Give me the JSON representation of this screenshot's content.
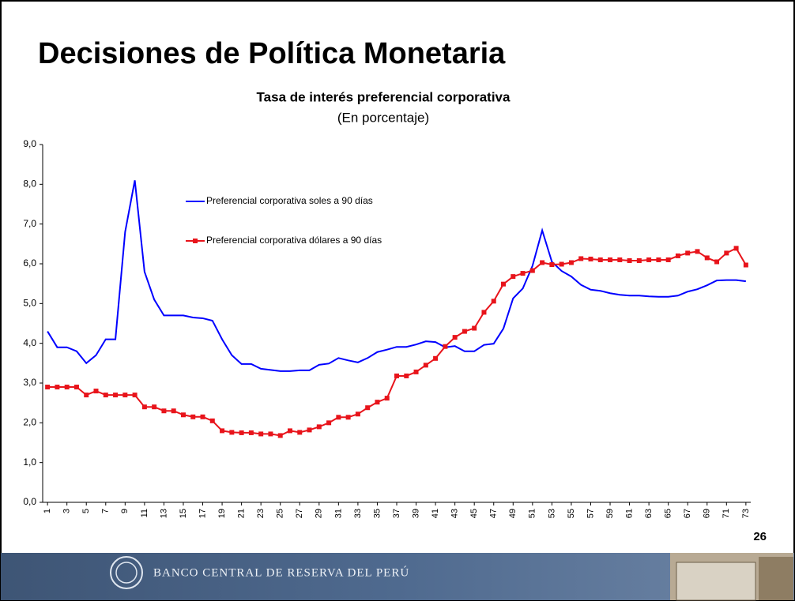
{
  "slide": {
    "title": "Decisiones de Política Monetaria",
    "page_number": "26",
    "footer": "BANCO CENTRAL DE RESERVA DEL PERÚ"
  },
  "chart_data": {
    "type": "line",
    "title": "Tasa de interés preferencial corporativa",
    "subtitle": "(En porcentaje)",
    "categories": [
      "1",
      null,
      "3",
      null,
      "5",
      null,
      "7",
      null,
      "9",
      null,
      "11",
      null,
      "13",
      null,
      "15",
      null,
      "17",
      null,
      "19",
      null,
      "21",
      null,
      "23",
      null,
      "25",
      null,
      "27",
      null,
      "29",
      null,
      "31",
      null,
      "33",
      null,
      "35",
      null,
      "37",
      null,
      "39",
      null,
      "41",
      null,
      "43",
      null,
      "45",
      null,
      "47",
      null,
      "49",
      null,
      "51",
      null,
      "53",
      null,
      "55",
      null,
      "57",
      null,
      "59",
      null,
      "61",
      null,
      "63",
      null,
      "65",
      null,
      "67",
      null,
      "69",
      null,
      "71",
      null,
      "73"
    ],
    "series": [
      {
        "name": "Preferencial corporativa soles a 90 días",
        "color": "#0000ff",
        "marker": "none",
        "values": [
          4.3,
          3.9,
          3.9,
          3.8,
          3.5,
          3.7,
          4.1,
          4.1,
          6.8,
          8.1,
          5.8,
          5.1,
          4.7,
          4.7,
          4.7,
          4.65,
          4.63,
          4.57,
          4.1,
          3.7,
          3.48,
          3.48,
          3.36,
          3.33,
          3.3,
          3.3,
          3.32,
          3.32,
          3.46,
          3.49,
          3.63,
          3.57,
          3.52,
          3.63,
          3.78,
          3.84,
          3.91,
          3.91,
          3.97,
          4.05,
          4.03,
          3.9,
          3.93,
          3.8,
          3.8,
          3.96,
          3.99,
          4.37,
          5.13,
          5.38,
          5.95,
          6.84,
          6.05,
          5.82,
          5.68,
          5.47,
          5.35,
          5.32,
          5.26,
          5.22,
          5.2,
          5.2,
          5.18,
          5.17,
          5.17,
          5.2,
          5.3,
          5.36,
          5.46,
          5.58,
          5.59,
          5.59,
          5.56
        ]
      },
      {
        "name": "Preferencial corporativa dólares a 90 días",
        "color": "#e8141b",
        "marker": "square",
        "values": [
          2.9,
          2.9,
          2.9,
          2.9,
          2.7,
          2.8,
          2.7,
          2.7,
          2.7,
          2.7,
          2.4,
          2.4,
          2.3,
          2.3,
          2.2,
          2.15,
          2.15,
          2.05,
          1.8,
          1.76,
          1.75,
          1.75,
          1.72,
          1.72,
          1.68,
          1.8,
          1.76,
          1.82,
          1.9,
          2.0,
          2.14,
          2.14,
          2.22,
          2.38,
          2.52,
          2.62,
          3.18,
          3.18,
          3.28,
          3.45,
          3.62,
          3.92,
          4.15,
          4.3,
          4.38,
          4.78,
          5.06,
          5.49,
          5.68,
          5.76,
          5.83,
          6.03,
          5.98,
          5.99,
          6.03,
          6.13,
          6.12,
          6.1,
          6.1,
          6.1,
          6.08,
          6.08,
          6.1,
          6.1,
          6.1,
          6.2,
          6.27,
          6.31,
          6.15,
          6.05,
          6.27,
          6.39,
          5.97
        ]
      }
    ],
    "ylim": [
      0,
      9
    ],
    "yticks": [
      {
        "value": 0,
        "label": "0,0"
      },
      {
        "value": 1,
        "label": "1,0"
      },
      {
        "value": 2,
        "label": "2,0"
      },
      {
        "value": 3,
        "label": "3,0"
      },
      {
        "value": 4,
        "label": "4,0"
      },
      {
        "value": 5,
        "label": "5,0"
      },
      {
        "value": 6,
        "label": "6,0"
      },
      {
        "value": 7,
        "label": "7,0"
      },
      {
        "value": 8,
        "label": "8,0"
      },
      {
        "value": 9,
        "label": "9,0"
      }
    ],
    "grid": false
  }
}
